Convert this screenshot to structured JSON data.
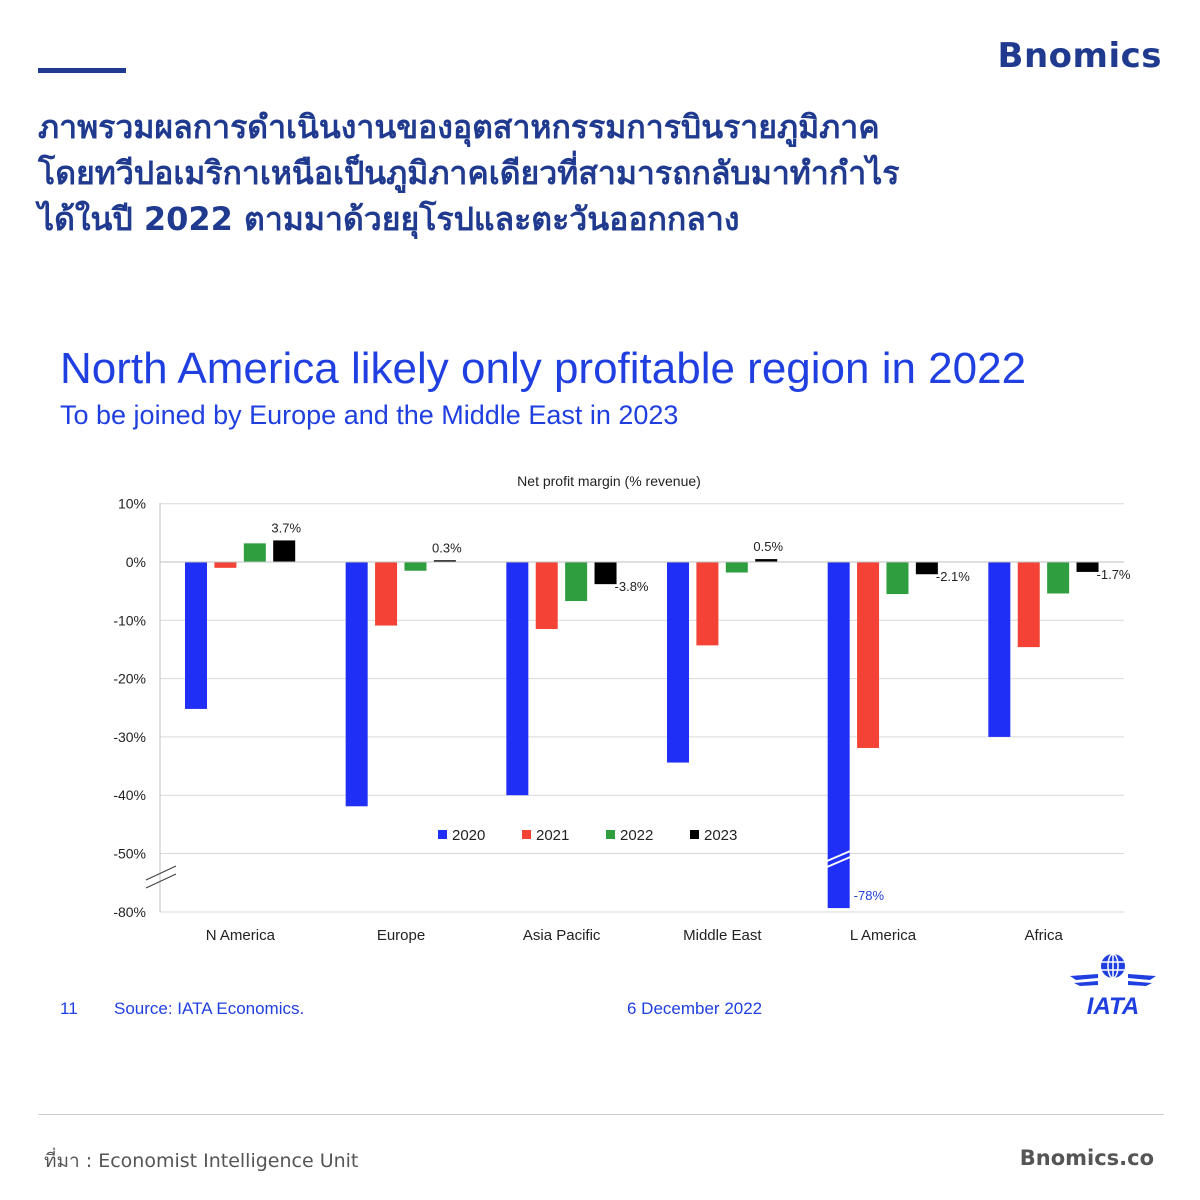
{
  "brand": {
    "name": "Bnomics",
    "website": "Bnomics.co"
  },
  "headline": {
    "lines": [
      "ภาพรวมผลการดำเนินงานของอุตสาหกรรมการบินรายภูมิภาค",
      "โดยทวีปอเมริกาเหนือเป็นภูมิภาคเดียวที่สามารถกลับมาทำกำไร",
      "ได้ในปี 2022 ตามมาด้วยยุโรปและตะวันออกกลาง"
    ]
  },
  "slide": {
    "number": "11",
    "source": "Source: IATA Economics.",
    "date": "6 December 2022",
    "logo_text": "IATA"
  },
  "footer": {
    "credit": "ที่มา : Economist Intelligence Unit"
  },
  "chart_data": {
    "type": "bar",
    "title": "North America likely only profitable region in 2022",
    "subtitle": "To be joined by Europe and the Middle East in 2023",
    "ylabel": "Net profit margin (% revenue)",
    "categories": [
      "N America",
      "Europe",
      "Asia Pacific",
      "Middle East",
      "L America",
      "Africa"
    ],
    "series": [
      {
        "name": "2020",
        "color": "#1f2ff5",
        "values": [
          -25.2,
          -41.9,
          -40.0,
          -34.4,
          -78,
          -30.0
        ]
      },
      {
        "name": "2021",
        "color": "#f44336",
        "values": [
          -1.0,
          -10.9,
          -11.5,
          -14.3,
          -31.9,
          -14.6
        ]
      },
      {
        "name": "2022",
        "color": "#2e9e3f",
        "values": [
          3.2,
          -1.5,
          -6.7,
          -1.8,
          -5.5,
          -5.4
        ]
      },
      {
        "name": "2023",
        "color": "#000000",
        "values": [
          3.7,
          0.3,
          -3.8,
          0.5,
          -2.1,
          -1.7
        ]
      }
    ],
    "data_labels": [
      {
        "category": "N America",
        "series": "2023",
        "text": "3.7%"
      },
      {
        "category": "Europe",
        "series": "2023",
        "text": "0.3%"
      },
      {
        "category": "Asia Pacific",
        "series": "2023",
        "text": "-3.8%"
      },
      {
        "category": "Middle East",
        "series": "2023",
        "text": "0.5%"
      },
      {
        "category": "L America",
        "series": "2023",
        "text": "-2.1%"
      },
      {
        "category": "Africa",
        "series": "2023",
        "text": "-1.7%"
      },
      {
        "category": "L America",
        "series": "2020",
        "text": "-78%"
      }
    ],
    "y_ticks": [
      10,
      0,
      -10,
      -20,
      -30,
      -40,
      -50,
      -80
    ],
    "y_tick_labels": [
      "10%",
      "0%",
      "-10%",
      "-20%",
      "-30%",
      "-40%",
      "-50%",
      "-80%"
    ],
    "ylim": [
      -80,
      10
    ],
    "axis_break": [
      -50,
      -80
    ],
    "grid": true,
    "legend_position": "bottom-center"
  }
}
